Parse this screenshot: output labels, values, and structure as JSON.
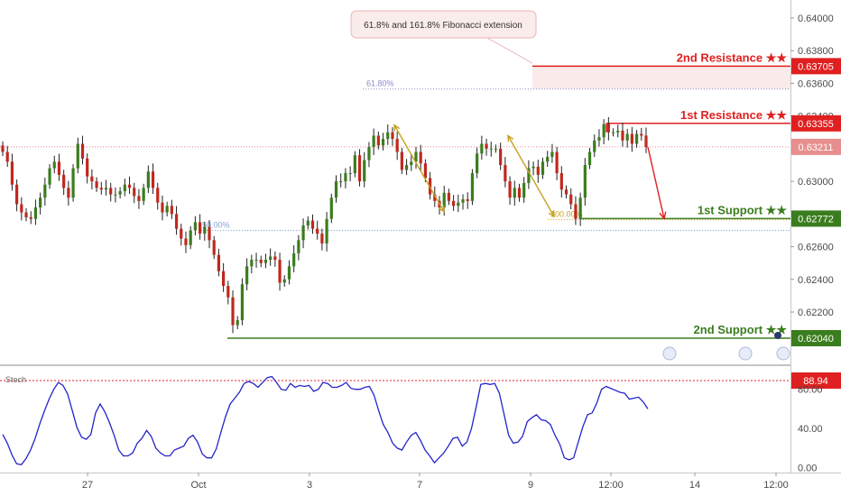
{
  "chart_data": [
    {
      "type": "candlestick",
      "title": "",
      "ylim": [
        0.6188,
        0.6411
      ],
      "y_ticks": [
        "0.64000",
        "0.63800",
        "0.63600",
        "0.63400",
        "0.63000",
        "0.62600",
        "0.62400",
        "0.62200"
      ],
      "x_ticks": [
        "27",
        "Oct",
        "3",
        "7",
        "9",
        "12:00",
        "14",
        "12:00"
      ],
      "last_price": "0.63211",
      "levels": [
        {
          "name": "2nd Resistance ★★",
          "price": "0.63705",
          "value": 0.63705,
          "color": "#e02020"
        },
        {
          "name": "1st Resistance ★★",
          "price": "0.63355",
          "value": 0.63355,
          "color": "#e02020"
        },
        {
          "name": "1st Support ★★",
          "price": "0.62772",
          "value": 0.62772,
          "color": "#3a7d1e"
        },
        {
          "name": "2nd Support ★★",
          "price": "0.62040",
          "value": 0.6204,
          "color": "#3a7d1e"
        }
      ],
      "fibonacci": [
        {
          "label": "61.80%",
          "value": 0.63565
        },
        {
          "label": "50.00%",
          "value": 0.627
        },
        {
          "label": "100.00%",
          "value": 0.62765
        }
      ],
      "annotation": "61.8% and 161.8% Fibonacci extension",
      "close_series": [
        0.6318,
        0.6312,
        0.6298,
        0.6286,
        0.6281,
        0.6278,
        0.6277,
        0.6284,
        0.629,
        0.6298,
        0.6308,
        0.6312,
        0.6304,
        0.6296,
        0.629,
        0.6308,
        0.6323,
        0.6314,
        0.6303,
        0.63,
        0.6296,
        0.6295,
        0.6296,
        0.6292,
        0.6292,
        0.6294,
        0.6298,
        0.6296,
        0.6291,
        0.6288,
        0.6296,
        0.6306,
        0.6296,
        0.6287,
        0.6281,
        0.6285,
        0.628,
        0.6271,
        0.6265,
        0.6261,
        0.627,
        0.6275,
        0.6268,
        0.6272,
        0.6264,
        0.6255,
        0.6245,
        0.6236,
        0.6229,
        0.6212,
        0.6215,
        0.6237,
        0.6248,
        0.6252,
        0.6252,
        0.625,
        0.6252,
        0.6254,
        0.6252,
        0.6238,
        0.624,
        0.6248,
        0.6256,
        0.6264,
        0.6273,
        0.6276,
        0.6271,
        0.6268,
        0.6262,
        0.6277,
        0.629,
        0.63,
        0.63,
        0.6305,
        0.6305,
        0.6316,
        0.63,
        0.6313,
        0.6321,
        0.6328,
        0.6322,
        0.6326,
        0.633,
        0.6326,
        0.6318,
        0.6307,
        0.631,
        0.6312,
        0.6318,
        0.6311,
        0.6302,
        0.6292,
        0.6288,
        0.6284,
        0.6293,
        0.6288,
        0.6285,
        0.6287,
        0.6289,
        0.6288,
        0.6305,
        0.6317,
        0.6323,
        0.632,
        0.632,
        0.632,
        0.631,
        0.63,
        0.629,
        0.6296,
        0.629,
        0.6299,
        0.6308,
        0.6309,
        0.6304,
        0.6312,
        0.6315,
        0.6318,
        0.6305,
        0.6295,
        0.6292,
        0.6286,
        0.6277,
        0.629,
        0.631,
        0.6318,
        0.6325,
        0.6327,
        0.6335,
        0.633,
        0.633,
        0.6331,
        0.6325,
        0.6329,
        0.6323,
        0.6329,
        0.6328,
        0.6321
      ],
      "projection": {
        "from": 0.6321,
        "to": 0.62772
      }
    },
    {
      "type": "line",
      "name": "Stoch",
      "ylim": [
        -5,
        100
      ],
      "y_ticks": [
        "80.00",
        "40.00",
        "0.00"
      ],
      "overbought_value": "88.94",
      "overbought": 88.94,
      "values": [
        34,
        25,
        13,
        4,
        3,
        9,
        18,
        30,
        45,
        58,
        70,
        80,
        87,
        84,
        75,
        58,
        41,
        31,
        29,
        34,
        56,
        65,
        57,
        46,
        33,
        18,
        12,
        12,
        15,
        25,
        30,
        38,
        32,
        20,
        15,
        12,
        12,
        18,
        20,
        22,
        30,
        33,
        26,
        14,
        10,
        10,
        19,
        36,
        52,
        65,
        71,
        77,
        86,
        88,
        86,
        82,
        87,
        92,
        93,
        87,
        80,
        79,
        86,
        82,
        84,
        83,
        84,
        78,
        80,
        87,
        86,
        82,
        82,
        84,
        87,
        81,
        80,
        80,
        82,
        83,
        74,
        58,
        44,
        36,
        25,
        20,
        18,
        26,
        33,
        36,
        28,
        18,
        12,
        5,
        10,
        15,
        22,
        30,
        31,
        22,
        26,
        40,
        62,
        85,
        86,
        85,
        86,
        76,
        55,
        33,
        25,
        26,
        32,
        47,
        51,
        54,
        49,
        48,
        44,
        33,
        24,
        10,
        8,
        10,
        26,
        42,
        54,
        56,
        66,
        80,
        83,
        81,
        79,
        77,
        76,
        70,
        71,
        72,
        67,
        60
      ]
    }
  ]
}
